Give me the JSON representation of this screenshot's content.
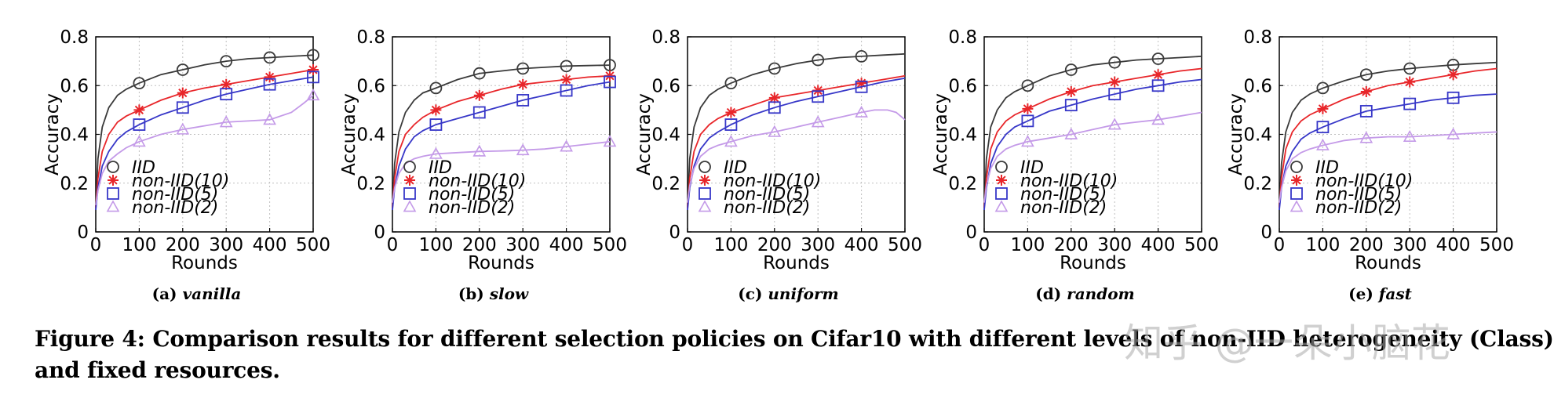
{
  "figure": {
    "caption_line1": "Figure 4: Comparison results for different selection policies on Cifar10 with different levels of non-IID heterogeneity (Class)",
    "caption_line2": "and fixed resources.",
    "watermark": "知乎 @一朵小脑花"
  },
  "colors": {
    "IID": "#3a3a3a",
    "non-IID(10)": "#e8262a",
    "non-IID(5)": "#3737c8",
    "non-IID(2)": "#c49ae8"
  },
  "chart_data": [
    {
      "type": "line",
      "label": "(a)",
      "policy": "vanilla",
      "xlabel": "Rounds",
      "ylabel": "Accuracy",
      "xlim": [
        0,
        500
      ],
      "ylim": [
        0,
        0.8
      ],
      "xticks": [
        "0",
        "100",
        "200",
        "300",
        "400",
        "500"
      ],
      "yticks": [
        "0",
        "0.2",
        "0.4",
        "0.6",
        "0.8"
      ],
      "grid": true,
      "legend_position": "lower-left",
      "series": [
        {
          "name": "IID",
          "marker": "circle",
          "x": [
            0,
            5,
            15,
            30,
            50,
            70,
            100,
            150,
            200,
            250,
            300,
            350,
            400,
            450,
            500
          ],
          "y": [
            0.1,
            0.3,
            0.43,
            0.51,
            0.56,
            0.585,
            0.61,
            0.645,
            0.665,
            0.685,
            0.7,
            0.71,
            0.715,
            0.72,
            0.725
          ]
        },
        {
          "name": "non-IID(10)",
          "marker": "star",
          "x": [
            0,
            5,
            15,
            30,
            50,
            70,
            100,
            150,
            200,
            250,
            300,
            350,
            400,
            450,
            500
          ],
          "y": [
            0.1,
            0.22,
            0.33,
            0.4,
            0.45,
            0.475,
            0.5,
            0.54,
            0.57,
            0.59,
            0.605,
            0.62,
            0.635,
            0.65,
            0.665
          ]
        },
        {
          "name": "non-IID(5)",
          "marker": "square",
          "x": [
            0,
            5,
            15,
            30,
            50,
            70,
            100,
            150,
            200,
            250,
            300,
            350,
            400,
            450,
            500
          ],
          "y": [
            0.09,
            0.18,
            0.27,
            0.33,
            0.38,
            0.41,
            0.44,
            0.48,
            0.51,
            0.54,
            0.565,
            0.585,
            0.605,
            0.62,
            0.635
          ]
        },
        {
          "name": "non-IID(2)",
          "marker": "triangle",
          "x": [
            0,
            5,
            15,
            30,
            50,
            70,
            100,
            150,
            200,
            250,
            300,
            350,
            400,
            450,
            480,
            500
          ],
          "y": [
            0.11,
            0.17,
            0.24,
            0.29,
            0.32,
            0.345,
            0.37,
            0.4,
            0.42,
            0.435,
            0.45,
            0.455,
            0.46,
            0.49,
            0.53,
            0.56
          ]
        }
      ],
      "markers": {
        "IID": [
          100,
          200,
          300,
          400,
          500
        ],
        "non-IID(10)": [
          100,
          200,
          300,
          400,
          500
        ],
        "non-IID(5)": [
          100,
          200,
          300,
          400,
          500
        ],
        "non-IID(2)": [
          100,
          200,
          300,
          400,
          500
        ]
      }
    },
    {
      "type": "line",
      "label": "(b)",
      "policy": "slow",
      "xlabel": "Rounds",
      "ylabel": "Accuracy",
      "xlim": [
        0,
        500
      ],
      "ylim": [
        0,
        0.8
      ],
      "xticks": [
        "0",
        "100",
        "200",
        "300",
        "400",
        "500"
      ],
      "yticks": [
        "0",
        "0.2",
        "0.4",
        "0.6",
        "0.8"
      ],
      "grid": true,
      "legend_position": "lower-left",
      "series": [
        {
          "name": "IID",
          "marker": "circle",
          "x": [
            0,
            5,
            15,
            30,
            50,
            70,
            100,
            150,
            200,
            250,
            300,
            350,
            400,
            450,
            500
          ],
          "y": [
            0.1,
            0.28,
            0.41,
            0.49,
            0.54,
            0.57,
            0.59,
            0.625,
            0.65,
            0.66,
            0.67,
            0.675,
            0.68,
            0.682,
            0.684
          ]
        },
        {
          "name": "non-IID(10)",
          "marker": "star",
          "x": [
            0,
            5,
            15,
            30,
            50,
            70,
            100,
            150,
            200,
            250,
            300,
            350,
            400,
            450,
            500
          ],
          "y": [
            0.1,
            0.22,
            0.33,
            0.4,
            0.44,
            0.47,
            0.5,
            0.535,
            0.56,
            0.585,
            0.605,
            0.615,
            0.625,
            0.635,
            0.64
          ]
        },
        {
          "name": "non-IID(5)",
          "marker": "square",
          "x": [
            0,
            5,
            15,
            30,
            50,
            70,
            100,
            150,
            200,
            250,
            300,
            350,
            400,
            450,
            500
          ],
          "y": [
            0.09,
            0.18,
            0.27,
            0.34,
            0.39,
            0.415,
            0.44,
            0.465,
            0.49,
            0.515,
            0.54,
            0.56,
            0.58,
            0.6,
            0.615
          ]
        },
        {
          "name": "non-IID(2)",
          "marker": "triangle",
          "x": [
            0,
            5,
            15,
            30,
            50,
            70,
            100,
            150,
            200,
            250,
            300,
            350,
            400,
            450,
            500
          ],
          "y": [
            0.12,
            0.18,
            0.24,
            0.28,
            0.3,
            0.31,
            0.32,
            0.325,
            0.33,
            0.332,
            0.335,
            0.34,
            0.35,
            0.36,
            0.37
          ]
        }
      ],
      "markers": {
        "IID": [
          100,
          200,
          300,
          400,
          500
        ],
        "non-IID(10)": [
          100,
          200,
          300,
          400,
          500
        ],
        "non-IID(5)": [
          100,
          200,
          300,
          400,
          500
        ],
        "non-IID(2)": [
          100,
          200,
          300,
          400,
          500
        ]
      }
    },
    {
      "type": "line",
      "label": "(c)",
      "policy": "uniform",
      "xlabel": "Rounds",
      "ylabel": "Accuracy",
      "xlim": [
        0,
        500
      ],
      "ylim": [
        0,
        0.8
      ],
      "xticks": [
        "0",
        "100",
        "200",
        "300",
        "400",
        "500"
      ],
      "yticks": [
        "0",
        "0.2",
        "0.4",
        "0.6",
        "0.8"
      ],
      "grid": true,
      "legend_position": "lower-left",
      "series": [
        {
          "name": "IID",
          "marker": "circle",
          "x": [
            0,
            5,
            15,
            30,
            50,
            70,
            100,
            150,
            200,
            250,
            300,
            350,
            400,
            450,
            500
          ],
          "y": [
            0.1,
            0.3,
            0.43,
            0.51,
            0.56,
            0.585,
            0.61,
            0.645,
            0.67,
            0.69,
            0.705,
            0.715,
            0.72,
            0.725,
            0.73
          ]
        },
        {
          "name": "non-IID(10)",
          "marker": "star",
          "x": [
            0,
            5,
            15,
            30,
            50,
            70,
            100,
            150,
            200,
            250,
            300,
            350,
            400,
            450,
            500
          ],
          "y": [
            0.1,
            0.22,
            0.33,
            0.4,
            0.44,
            0.465,
            0.49,
            0.52,
            0.55,
            0.565,
            0.58,
            0.595,
            0.61,
            0.625,
            0.64
          ]
        },
        {
          "name": "non-IID(5)",
          "marker": "square",
          "x": [
            0,
            5,
            15,
            30,
            50,
            70,
            100,
            150,
            200,
            250,
            300,
            350,
            400,
            450,
            500
          ],
          "y": [
            0.09,
            0.18,
            0.27,
            0.34,
            0.385,
            0.41,
            0.44,
            0.48,
            0.51,
            0.535,
            0.555,
            0.575,
            0.595,
            0.615,
            0.63
          ]
        },
        {
          "name": "non-IID(2)",
          "marker": "triangle",
          "x": [
            0,
            5,
            15,
            30,
            50,
            70,
            100,
            150,
            200,
            250,
            300,
            350,
            400,
            430,
            460,
            480,
            500
          ],
          "y": [
            0.12,
            0.19,
            0.26,
            0.31,
            0.34,
            0.355,
            0.37,
            0.395,
            0.41,
            0.43,
            0.45,
            0.47,
            0.49,
            0.5,
            0.5,
            0.49,
            0.46
          ]
        }
      ],
      "markers": {
        "IID": [
          100,
          200,
          300,
          400
        ],
        "non-IID(10)": [
          100,
          200,
          300,
          400
        ],
        "non-IID(5)": [
          100,
          200,
          300,
          400
        ],
        "non-IID(2)": [
          100,
          200,
          300,
          400
        ]
      }
    },
    {
      "type": "line",
      "label": "(d)",
      "policy": "random",
      "xlabel": "Rounds",
      "ylabel": "Accuracy",
      "xlim": [
        0,
        500
      ],
      "ylim": [
        0,
        0.8
      ],
      "xticks": [
        "0",
        "100",
        "200",
        "300",
        "400",
        "500"
      ],
      "yticks": [
        "0",
        "0.2",
        "0.4",
        "0.6",
        "0.8"
      ],
      "grid": true,
      "legend_position": "lower-left",
      "series": [
        {
          "name": "IID",
          "marker": "circle",
          "x": [
            0,
            5,
            15,
            30,
            50,
            70,
            100,
            150,
            200,
            250,
            300,
            350,
            400,
            450,
            500
          ],
          "y": [
            0.1,
            0.3,
            0.43,
            0.5,
            0.55,
            0.575,
            0.6,
            0.64,
            0.665,
            0.685,
            0.695,
            0.705,
            0.71,
            0.715,
            0.72
          ]
        },
        {
          "name": "non-IID(10)",
          "marker": "star",
          "x": [
            0,
            5,
            15,
            30,
            50,
            70,
            100,
            150,
            200,
            250,
            300,
            350,
            400,
            450,
            500
          ],
          "y": [
            0.1,
            0.22,
            0.34,
            0.41,
            0.455,
            0.48,
            0.505,
            0.545,
            0.575,
            0.6,
            0.615,
            0.63,
            0.645,
            0.66,
            0.67
          ]
        },
        {
          "name": "non-IID(5)",
          "marker": "square",
          "x": [
            0,
            5,
            15,
            30,
            50,
            70,
            100,
            150,
            200,
            250,
            300,
            350,
            400,
            450,
            500
          ],
          "y": [
            0.09,
            0.18,
            0.28,
            0.35,
            0.4,
            0.43,
            0.455,
            0.495,
            0.52,
            0.545,
            0.565,
            0.585,
            0.6,
            0.615,
            0.625
          ]
        },
        {
          "name": "non-IID(2)",
          "marker": "triangle",
          "x": [
            0,
            5,
            15,
            30,
            50,
            70,
            100,
            150,
            200,
            250,
            300,
            350,
            400,
            450,
            500
          ],
          "y": [
            0.12,
            0.19,
            0.26,
            0.31,
            0.34,
            0.355,
            0.37,
            0.385,
            0.4,
            0.42,
            0.44,
            0.45,
            0.46,
            0.475,
            0.49
          ]
        }
      ],
      "markers": {
        "IID": [
          100,
          200,
          300,
          400
        ],
        "non-IID(10)": [
          100,
          200,
          300,
          400
        ],
        "non-IID(5)": [
          100,
          200,
          300,
          400
        ],
        "non-IID(2)": [
          100,
          200,
          300,
          400
        ]
      }
    },
    {
      "type": "line",
      "label": "(e)",
      "policy": "fast",
      "xlabel": "Rounds",
      "ylabel": "Accuracy",
      "xlim": [
        0,
        500
      ],
      "ylim": [
        0,
        0.8
      ],
      "xticks": [
        "0",
        "100",
        "200",
        "300",
        "400",
        "500"
      ],
      "yticks": [
        "0",
        "0.2",
        "0.4",
        "0.6",
        "0.8"
      ],
      "grid": true,
      "legend_position": "lower-left",
      "series": [
        {
          "name": "IID",
          "marker": "circle",
          "x": [
            0,
            5,
            15,
            30,
            50,
            70,
            100,
            150,
            200,
            250,
            300,
            350,
            400,
            450,
            500
          ],
          "y": [
            0.1,
            0.28,
            0.41,
            0.49,
            0.54,
            0.565,
            0.59,
            0.62,
            0.645,
            0.66,
            0.67,
            0.678,
            0.685,
            0.69,
            0.695
          ]
        },
        {
          "name": "non-IID(10)",
          "marker": "star",
          "x": [
            0,
            5,
            15,
            30,
            50,
            70,
            100,
            150,
            200,
            250,
            300,
            350,
            400,
            450,
            500
          ],
          "y": [
            0.1,
            0.22,
            0.34,
            0.41,
            0.455,
            0.48,
            0.505,
            0.545,
            0.575,
            0.6,
            0.615,
            0.63,
            0.645,
            0.66,
            0.67
          ]
        },
        {
          "name": "non-IID(5)",
          "marker": "square",
          "x": [
            0,
            5,
            15,
            30,
            50,
            70,
            100,
            150,
            200,
            250,
            300,
            350,
            400,
            450,
            500
          ],
          "y": [
            0.09,
            0.18,
            0.27,
            0.33,
            0.38,
            0.405,
            0.43,
            0.465,
            0.495,
            0.51,
            0.525,
            0.54,
            0.55,
            0.56,
            0.565
          ]
        },
        {
          "name": "non-IID(2)",
          "marker": "triangle",
          "x": [
            0,
            5,
            15,
            30,
            50,
            70,
            100,
            150,
            200,
            250,
            300,
            350,
            400,
            450,
            500
          ],
          "y": [
            0.12,
            0.18,
            0.25,
            0.3,
            0.325,
            0.34,
            0.355,
            0.375,
            0.385,
            0.39,
            0.39,
            0.395,
            0.4,
            0.405,
            0.41
          ]
        }
      ],
      "markers": {
        "IID": [
          100,
          200,
          300,
          400
        ],
        "non-IID(10)": [
          100,
          200,
          300,
          400
        ],
        "non-IID(5)": [
          100,
          200,
          300,
          400
        ],
        "non-IID(2)": [
          100,
          200,
          300,
          400
        ]
      }
    }
  ]
}
